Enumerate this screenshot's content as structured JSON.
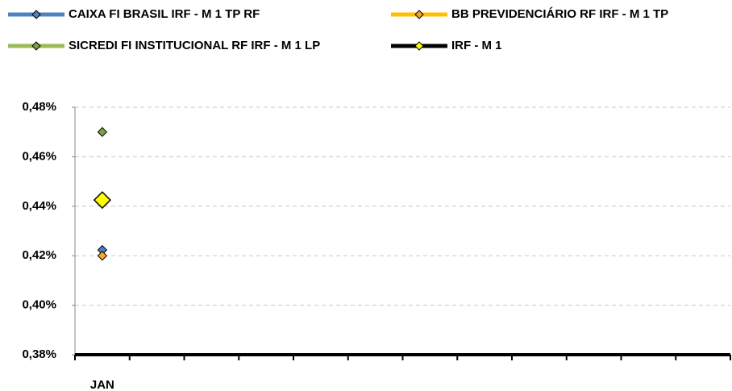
{
  "chart_data": {
    "type": "line",
    "categories": [
      "JAN",
      null,
      null,
      null,
      null,
      null,
      null,
      null,
      null,
      null,
      null,
      null
    ],
    "series": [
      {
        "name": "CAIXA FI BRASIL IRF - M 1 TP RF",
        "color": "#4f81bd",
        "marker_color": "#4f81bd",
        "values": [
          0.4223,
          null,
          null,
          null,
          null,
          null,
          null,
          null,
          null,
          null,
          null,
          null
        ]
      },
      {
        "name": "BB PREVIDENCIÁRIO RF IRF - M 1 TP",
        "color": "#ffc000",
        "marker_color": "#f5a623",
        "values": [
          0.42,
          null,
          null,
          null,
          null,
          null,
          null,
          null,
          null,
          null,
          null,
          null
        ]
      },
      {
        "name": "SICREDI FI INSTITUCIONAL RF IRF - M 1 LP",
        "color": "#9bbb59",
        "marker_color": "#7ea13f",
        "values": [
          0.47,
          null,
          null,
          null,
          null,
          null,
          null,
          null,
          null,
          null,
          null,
          null
        ]
      },
      {
        "name": "IRF - M 1",
        "color": "#000000",
        "marker_color": "#ffff00",
        "values": [
          0.4425,
          null,
          null,
          null,
          null,
          null,
          null,
          null,
          null,
          null,
          null,
          null
        ]
      }
    ],
    "ylim": [
      0.38,
      0.48
    ],
    "yticks": [
      {
        "value": 0.38,
        "label": "0,38%"
      },
      {
        "value": 0.4,
        "label": "0,40%"
      },
      {
        "value": 0.42,
        "label": "0,42%"
      },
      {
        "value": 0.44,
        "label": "0,44%"
      },
      {
        "value": 0.46,
        "label": "0,46%"
      },
      {
        "value": 0.48,
        "label": "0,48%"
      }
    ],
    "grid": true,
    "legend": "top"
  }
}
